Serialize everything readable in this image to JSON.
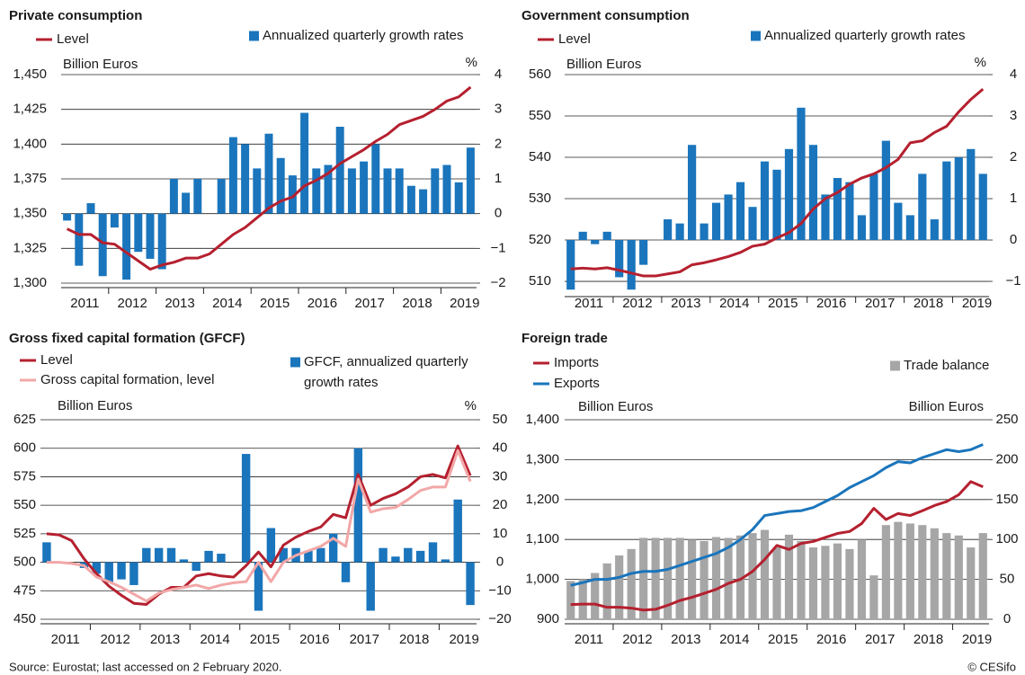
{
  "chart_data": [
    {
      "type": "combo",
      "title": "Private consumption",
      "y_label": "Billion Euros",
      "y2_label": "%",
      "y_color": "#b5202f",
      "y2_color": "#1a75bc",
      "categories": [
        "2011",
        null,
        null,
        null,
        "2012",
        null,
        null,
        null,
        "2013",
        null,
        null,
        null,
        "2014",
        null,
        null,
        null,
        "2015",
        null,
        null,
        null,
        "2016",
        null,
        null,
        null,
        "2017",
        null,
        null,
        null,
        "2018",
        null,
        null,
        null,
        "2019",
        null,
        null
      ],
      "ylim": [
        1300,
        1450
      ],
      "yticks": [
        {
          "value": 1300,
          "label": "1,300"
        },
        {
          "value": 1325,
          "label": "1,325"
        },
        {
          "value": 1350,
          "label": "1,350"
        },
        {
          "value": 1375,
          "label": "1,375"
        },
        {
          "value": 1400,
          "label": "1,400"
        },
        {
          "value": 1425,
          "label": "1,425"
        },
        {
          "value": 1450,
          "label": "1,450"
        }
      ],
      "y2lim": [
        -2,
        4
      ],
      "y2ticks": [
        {
          "value": -2,
          "label": "−2"
        },
        {
          "value": -1,
          "label": "−1"
        },
        0,
        1,
        2,
        3,
        4
      ],
      "grid": true,
      "series": [
        {
          "name": "Level",
          "type": "line",
          "color": "#b5202f",
          "values": [
            1339,
            1335,
            1335,
            1329,
            1328,
            1322,
            1316,
            1310,
            1313,
            1315,
            1318,
            1318,
            1321,
            1328,
            1335,
            1340,
            1347,
            1354,
            1359,
            1362,
            1370,
            1374,
            1379,
            1386,
            1391,
            1396,
            1402,
            1407,
            1414,
            1417,
            1420,
            1425,
            1431,
            1434,
            1441
          ]
        },
        {
          "name": "Annualized quarterly growth rates",
          "type": "bar",
          "axis": "y2",
          "color": "#1a75bc",
          "values": [
            -0.2,
            -1.5,
            0.3,
            -1.8,
            -0.4,
            -1.9,
            -1.1,
            -1.3,
            -1.6,
            1.0,
            0.6,
            1.0,
            0.0,
            1.0,
            2.2,
            2.0,
            1.3,
            2.3,
            1.6,
            1.1,
            2.9,
            1.3,
            1.4,
            2.5,
            1.3,
            1.5,
            2.0,
            1.3,
            1.3,
            0.8,
            0.7,
            1.3,
            1.4,
            0.9,
            1.9
          ]
        }
      ]
    },
    {
      "type": "combo",
      "title": "Government consumption",
      "y_label": "Billion Euros",
      "y2_label": "%",
      "y_color": "#b5202f",
      "y2_color": "#1a75bc",
      "categories": [
        "2011",
        null,
        null,
        null,
        "2012",
        null,
        null,
        null,
        "2013",
        null,
        null,
        null,
        "2014",
        null,
        null,
        null,
        "2015",
        null,
        null,
        null,
        "2016",
        null,
        null,
        null,
        "2017",
        null,
        null,
        null,
        "2018",
        null,
        null,
        null,
        "2019",
        null,
        null
      ],
      "ylim": [
        507.4,
        561
      ],
      "yticks": [
        510,
        520,
        530,
        540,
        550,
        560
      ],
      "y2lim": [
        -1.26,
        4.1
      ],
      "y2ticks": [
        {
          "value": -1,
          "label": "−1"
        },
        0,
        1,
        2,
        3,
        4
      ],
      "grid": true,
      "series": [
        {
          "name": "Level",
          "type": "line",
          "color": "#b5202f",
          "values": [
            513,
            513.2,
            513,
            513.3,
            512.7,
            512,
            511.3,
            511.3,
            511.8,
            512.3,
            514,
            514.5,
            515.2,
            516,
            517,
            518.5,
            519,
            520.5,
            521.8,
            524,
            527.5,
            530,
            531.5,
            533.5,
            535,
            536,
            537.5,
            539.5,
            543.5,
            544,
            546,
            547.5,
            551,
            554,
            556.5
          ]
        },
        {
          "name": "Annualized quarterly growth rates",
          "type": "bar",
          "axis": "y2",
          "color": "#1a75bc",
          "values": [
            -1.2,
            0.2,
            -0.1,
            0.2,
            -0.9,
            -1.2,
            -0.6,
            0.0,
            0.5,
            0.4,
            2.3,
            0.4,
            0.9,
            1.1,
            1.4,
            0.8,
            1.9,
            1.7,
            2.2,
            3.2,
            2.3,
            1.1,
            1.5,
            1.4,
            0.6,
            1.6,
            2.4,
            0.9,
            0.6,
            1.6,
            0.5,
            1.9,
            2.0,
            2.2,
            1.6
          ]
        }
      ]
    },
    {
      "type": "combo",
      "title": "Gross fixed capital formation (GFCF)",
      "y_label": "Billion Euros",
      "y2_label": "%",
      "y_color": "#b5202f",
      "y2_color": "#1a75bc",
      "categories": [
        "2011",
        null,
        null,
        null,
        "2012",
        null,
        null,
        null,
        "2013",
        null,
        null,
        null,
        "2014",
        null,
        null,
        null,
        "2015",
        null,
        null,
        null,
        "2016",
        null,
        null,
        null,
        "2017",
        null,
        null,
        null,
        "2018",
        null,
        null,
        null,
        "2019",
        null,
        null
      ],
      "ylim": [
        450,
        625
      ],
      "yticks": [
        450,
        475,
        500,
        525,
        550,
        575,
        600,
        625
      ],
      "y2lim": [
        -20,
        50
      ],
      "y2ticks": [
        {
          "value": -20,
          "label": "−20"
        },
        {
          "value": -10,
          "label": "−10"
        },
        0,
        10,
        20,
        30,
        40,
        50
      ],
      "grid": true,
      "series": [
        {
          "name": "Level",
          "type": "line",
          "color": "#b5202f",
          "values": [
            525,
            524,
            519,
            503,
            490,
            479,
            471,
            464,
            463,
            472,
            478,
            478,
            488,
            490,
            488,
            487,
            497,
            509,
            496,
            515,
            522,
            527,
            531,
            542,
            539,
            577,
            550,
            556,
            560,
            566,
            575,
            577,
            574,
            602,
            576
          ]
        },
        {
          "name": "Gross capital formation, level",
          "type": "line",
          "color": "#f2a7a7",
          "values": [
            500,
            500,
            499,
            497,
            487,
            483,
            478,
            472,
            466,
            473,
            476,
            478,
            480,
            477,
            480,
            482,
            483,
            500,
            483,
            500,
            506,
            510,
            514,
            521,
            514,
            573,
            544,
            547,
            548,
            555,
            563,
            566,
            566,
            598,
            571
          ]
        },
        {
          "name": "GFCF, annualized quarterly growth rates",
          "type": "bar",
          "axis": "y2",
          "color": "#1a75bc",
          "values": [
            7,
            0,
            0,
            -2,
            -4,
            -7,
            -6,
            -8,
            5,
            5,
            5,
            1,
            -3,
            4,
            3,
            0,
            38,
            -17,
            12,
            5,
            5,
            4,
            5,
            10,
            -7,
            40,
            -17,
            5,
            2,
            5,
            4,
            7,
            1,
            22,
            -15
          ]
        }
      ]
    },
    {
      "type": "combo",
      "title": "Foreign trade",
      "y_label": "Billion Euros",
      "y2_label": "Billion Euros",
      "y_color": "#1a1a1a",
      "y2_color": "#9a9a9a",
      "categories": [
        "2011",
        null,
        null,
        null,
        "2012",
        null,
        null,
        null,
        "2013",
        null,
        null,
        null,
        "2014",
        null,
        null,
        null,
        "2015",
        null,
        null,
        null,
        "2016",
        null,
        null,
        null,
        "2017",
        null,
        null,
        null,
        "2018",
        null,
        null,
        null,
        "2019",
        null,
        null
      ],
      "ylim": [
        900,
        1400
      ],
      "yticks": [
        900,
        {
          "value": 1000,
          "label": "1,000"
        },
        {
          "value": 1100,
          "label": "1,100"
        },
        {
          "value": 1200,
          "label": "1,200"
        },
        {
          "value": 1300,
          "label": "1,300"
        },
        {
          "value": 1400,
          "label": "1,400"
        }
      ],
      "y2lim": [
        0,
        250
      ],
      "y2ticks": [
        0,
        50,
        100,
        150,
        200,
        250
      ],
      "grid": true,
      "series": [
        {
          "name": "Trade balance",
          "type": "bar",
          "axis": "y2",
          "color": "#a6a6a6",
          "values": [
            48,
            50,
            58,
            70,
            80,
            88,
            102,
            102,
            102,
            102,
            100,
            98,
            103,
            102,
            105,
            108,
            112,
            90,
            106,
            98,
            90,
            92,
            95,
            88,
            100,
            55,
            118,
            122,
            120,
            118,
            114,
            108,
            105,
            90,
            108
          ]
        },
        {
          "name": "Imports",
          "type": "line",
          "color": "#b5202f",
          "values": [
            937,
            938,
            938,
            930,
            930,
            928,
            923,
            925,
            935,
            947,
            955,
            965,
            975,
            990,
            1000,
            1020,
            1050,
            1085,
            1075,
            1090,
            1095,
            1105,
            1115,
            1120,
            1140,
            1178,
            1150,
            1165,
            1160,
            1172,
            1185,
            1195,
            1212,
            1245,
            1232
          ]
        },
        {
          "name": "Exports",
          "type": "line",
          "color": "#1a75bc",
          "values": [
            985,
            992,
            1000,
            1000,
            1005,
            1015,
            1020,
            1020,
            1025,
            1035,
            1045,
            1055,
            1065,
            1080,
            1100,
            1125,
            1160,
            1165,
            1170,
            1172,
            1180,
            1195,
            1210,
            1230,
            1245,
            1260,
            1280,
            1295,
            1292,
            1305,
            1315,
            1325,
            1320,
            1325,
            1338
          ]
        }
      ]
    }
  ],
  "footer": {
    "source": "Source: Eurostat; last accessed on 2 February 2020.",
    "copyright": "© CESifo"
  }
}
